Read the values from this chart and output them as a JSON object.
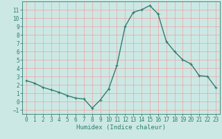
{
  "x": [
    0,
    1,
    2,
    3,
    4,
    5,
    6,
    7,
    8,
    9,
    10,
    11,
    12,
    13,
    14,
    15,
    16,
    17,
    18,
    19,
    20,
    21,
    22,
    23
  ],
  "y": [
    2.5,
    2.2,
    1.7,
    1.4,
    1.1,
    0.7,
    0.4,
    0.3,
    -0.8,
    0.2,
    1.5,
    4.3,
    9.0,
    10.7,
    11.0,
    11.5,
    10.5,
    7.2,
    6.0,
    5.0,
    4.5,
    3.1,
    3.0,
    1.7
  ],
  "line_color": "#2e7d6e",
  "marker": "+",
  "bg_color": "#cce8e4",
  "grid_color": "#f0a0a0",
  "axis_color": "#2e7d6e",
  "xlabel": "Humidex (Indice chaleur)",
  "ylim": [
    -1.5,
    12.0
  ],
  "xlim": [
    -0.5,
    23.5
  ],
  "yticks": [
    -1,
    0,
    1,
    2,
    3,
    4,
    5,
    6,
    7,
    8,
    9,
    10,
    11
  ],
  "xticks": [
    0,
    1,
    2,
    3,
    4,
    5,
    6,
    7,
    8,
    9,
    10,
    11,
    12,
    13,
    14,
    15,
    16,
    17,
    18,
    19,
    20,
    21,
    22,
    23
  ]
}
